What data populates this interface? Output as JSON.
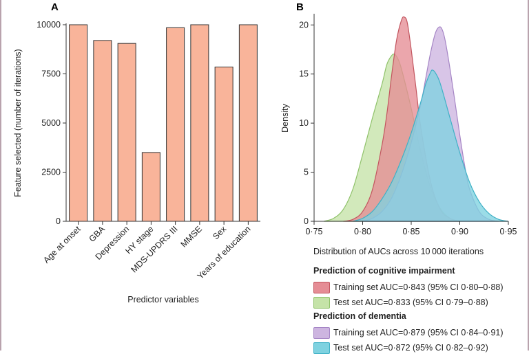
{
  "chart_data": [
    {
      "panel": "A",
      "type": "bar",
      "categories": [
        "Age at onset",
        "GBA",
        "Depression",
        "HY stage",
        "MDS-UPDRS III",
        "MMSE",
        "Sex",
        "Years of education"
      ],
      "values": [
        10000,
        9200,
        9050,
        3500,
        9850,
        10000,
        7850,
        10000
      ],
      "ylabel": "Feature selected (number of iterations)",
      "xlabel": "Predictor variables",
      "ylim": [
        0,
        10000
      ],
      "yticks": [
        "0",
        "2500",
        "5000",
        "7500",
        "10000"
      ],
      "ytick_values": [
        0,
        2500,
        5000,
        7500,
        10000
      ],
      "bar_color": "#f9b49a",
      "bar_edge": "#333333"
    },
    {
      "panel": "B",
      "type": "area",
      "xlabel": "Distribution of AUCs across 10 000 iterations",
      "ylabel": "Density",
      "xlim": [
        0.75,
        0.95
      ],
      "ylim": [
        0,
        21
      ],
      "xticks": [
        "0·75",
        "0·80",
        "0·85",
        "0·90",
        "0·95"
      ],
      "xtick_values": [
        0.75,
        0.8,
        0.85,
        0.9,
        0.95
      ],
      "yticks": [
        "0",
        "5",
        "10",
        "15",
        "20"
      ],
      "ytick_values": [
        0,
        5,
        10,
        15,
        20
      ],
      "series": [
        {
          "name": "Training set AUC=0·843 (95% CI 0·80–0·88)",
          "group": "cognitive",
          "fill": "#e58d95",
          "stroke": "#c2555f",
          "x": [
            0.78,
            0.79,
            0.8,
            0.81,
            0.82,
            0.825,
            0.83,
            0.835,
            0.84,
            0.843,
            0.846,
            0.85,
            0.855,
            0.86,
            0.87,
            0.88,
            0.89,
            0.9
          ],
          "y": [
            0.0,
            0.2,
            1.0,
            3.2,
            7.8,
            11.0,
            15.0,
            18.5,
            20.5,
            20.8,
            20.2,
            17.5,
            13.5,
            9.5,
            4.0,
            1.2,
            0.3,
            0.0
          ]
        },
        {
          "name": "Test set AUC=0·833 (95% CI 0·79–0·88)",
          "group": "cognitive",
          "fill": "#c5e3a8",
          "stroke": "#8fc26a",
          "x": [
            0.76,
            0.77,
            0.78,
            0.79,
            0.8,
            0.81,
            0.82,
            0.825,
            0.83,
            0.833,
            0.836,
            0.84,
            0.85,
            0.86,
            0.87,
            0.88,
            0.89,
            0.9
          ],
          "y": [
            0.0,
            0.3,
            1.2,
            3.3,
            6.8,
            10.5,
            14.0,
            16.0,
            16.9,
            17.0,
            16.6,
            15.5,
            11.5,
            7.0,
            3.4,
            1.3,
            0.3,
            0.0
          ]
        },
        {
          "name": "Training set AUC=0·879 (95% CI 0·84–0·91)",
          "group": "dementia",
          "fill": "#cdb5e0",
          "stroke": "#a585c5",
          "x": [
            0.8,
            0.81,
            0.82,
            0.83,
            0.84,
            0.85,
            0.86,
            0.865,
            0.87,
            0.875,
            0.879,
            0.882,
            0.885,
            0.89,
            0.895,
            0.9,
            0.905,
            0.91,
            0.92,
            0.93,
            0.94
          ],
          "y": [
            0.0,
            0.3,
            1.0,
            2.4,
            4.8,
            8.0,
            12.0,
            14.6,
            17.2,
            19.2,
            19.8,
            19.5,
            18.4,
            15.5,
            12.2,
            8.8,
            5.7,
            3.3,
            1.0,
            0.2,
            0.0
          ]
        },
        {
          "name": "Test set AUC=0·872 (95% CI 0·82–0·92)",
          "group": "dementia",
          "fill": "#7fd2e0",
          "stroke": "#3fb1c6",
          "x": [
            0.79,
            0.8,
            0.81,
            0.82,
            0.83,
            0.84,
            0.85,
            0.86,
            0.865,
            0.87,
            0.872,
            0.875,
            0.88,
            0.89,
            0.9,
            0.91,
            0.92,
            0.93,
            0.94,
            0.95
          ],
          "y": [
            0.0,
            0.3,
            1.0,
            2.3,
            4.0,
            6.3,
            9.0,
            12.2,
            14.0,
            15.2,
            15.4,
            15.1,
            14.0,
            10.5,
            7.0,
            4.0,
            2.0,
            0.8,
            0.2,
            0.0
          ]
        }
      ]
    }
  ],
  "panels": {
    "a_label": "A",
    "b_label": "B"
  },
  "legend": {
    "cognitive_heading": "Prediction of cognitive impairment",
    "dementia_heading": "Prediction of dementia",
    "items": [
      {
        "label": "Training set AUC=0·843 (95% CI 0·80–0·88)",
        "fill": "#e58d95",
        "stroke": "#c2555f"
      },
      {
        "label": "Test set AUC=0·833 (95% CI 0·79–0·88)",
        "fill": "#c5e3a8",
        "stroke": "#8fc26a"
      },
      {
        "label": "Training set AUC=0·879 (95% CI 0·84–0·91)",
        "fill": "#cdb5e0",
        "stroke": "#a585c5"
      },
      {
        "label": "Test set AUC=0·872 (95% CI 0·82–0·92)",
        "fill": "#7fd2e0",
        "stroke": "#3fb1c6"
      }
    ]
  }
}
